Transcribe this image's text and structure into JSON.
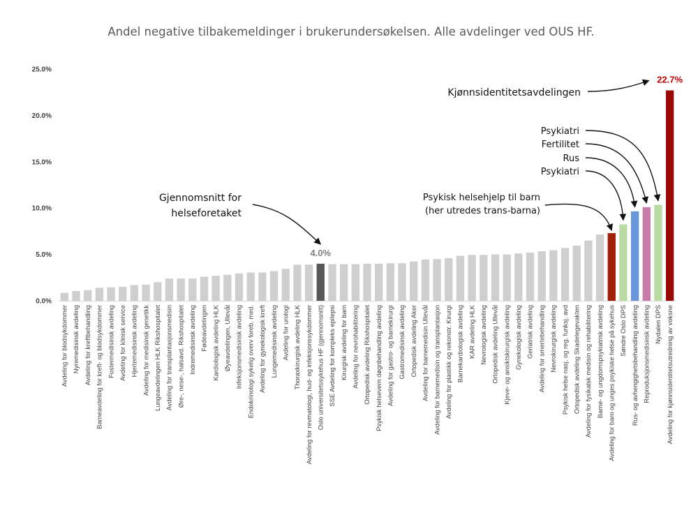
{
  "chart_data": {
    "type": "bar",
    "title": "Andel negative tilbakemeldinger i brukerundersøkelsen. Alle avdelinger ved OUS HF.",
    "xlabel": "",
    "ylabel": "",
    "ylim": [
      0,
      25
    ],
    "yticks": [
      "0.0%",
      "5.0%",
      "10.0%",
      "15.0%",
      "20.0%",
      "25.0%"
    ],
    "ytick_values": [
      0,
      5,
      10,
      15,
      20,
      25
    ],
    "grid": false,
    "categories": [
      "Avdeling for blodsykdommer",
      "Nyremedisinsk avdeling",
      "Avdeling for kreftbehandling",
      "Barneavdeling for kreft- og blodsykdommer",
      "Fostermedisinsk avdeling",
      "Avdeling for klinisk service",
      "Hjertemedisinsk avdeling",
      "Avdeling for medisinsk genetikk",
      "Lungeavdelingen HLK Rikshospitalet",
      "Avdeling for transplantasjonsmedisin",
      "Øre-, nese-, halsavd. Rikshospitalet",
      "Indremedisinsk avdeling",
      "Fødeavdelingen",
      "Kardiologisk avdeling HLK",
      "Øyeavdelingen, Ullevål",
      "Infeksjonsmedisinsk avdeling",
      "Endokrinologi sykelig overv foreb. med.",
      "Avdeling for gynekologisk kreft",
      "Lungemedisinsk avdeling",
      "Avdeling for urologi",
      "Thoraxkirurgisk avdeling HLK",
      "Avdeling for revmatologi, hud- og infeksjonssykdommer",
      "Oslo universitetssykehus HF (gjennomsnitt)",
      "SSE Avdeling for kompleks epilepsi",
      "Kirurgisk avdeling for barn",
      "Avdeling for nevrohabilitering",
      "Ortopedisk avdeling Rikshospitalet",
      "Psykisk helsevern døgnbehandling avdeling",
      "Avdeling for gastro- og barnekirurgi",
      "Gastromedisinsk avdeling",
      "Ortopedisk avdeling Aker",
      "Avdeling for barnemedisin Ullevål",
      "Avdeling for barnemedisin og transplantasjon",
      "Avdeling for plastikk og rekonstr. Kirurgi",
      "Barnekardiologisk avdeling",
      "KAR avdeling HLK",
      "Nevrologisk avdeling",
      "Ortopedisk avdeling Ullevål",
      "Kjeve- og ansiktskirurgisk avdeling",
      "Gynekologisk avdeling",
      "Geriatrisk avdeling",
      "Avdeling for smertebehandling",
      "Nevrokirurgisk avdeling",
      "Psykisk helse nasj. og reg. funksj. avd",
      "Ortopedisk avdeling Skadelegevakten",
      "Avdeling for fysikalsk medisin og rehabilitering",
      "Barne- og ungdomspsykiatrisk avdeling",
      "Avdeling for barn og unges psykiske helse på sykehus",
      "Søndre Oslo DPS",
      "Rus- og avhengighetsbehandling avdeling",
      "Reproduksjonsmedisinsk avdeling",
      "Nydalen DPS",
      "Avdeling for kjønnsidentitetsutredning av voksne"
    ],
    "values": [
      0.85,
      1.05,
      1.15,
      1.4,
      1.45,
      1.5,
      1.7,
      1.75,
      2.0,
      2.4,
      2.4,
      2.4,
      2.6,
      2.7,
      2.8,
      2.95,
      3.05,
      3.05,
      3.2,
      3.45,
      3.9,
      3.9,
      4.0,
      3.95,
      3.95,
      3.95,
      4.0,
      4.0,
      4.05,
      4.05,
      4.25,
      4.45,
      4.5,
      4.6,
      4.85,
      4.95,
      4.95,
      5.0,
      5.0,
      5.1,
      5.2,
      5.35,
      5.45,
      5.7,
      5.95,
      6.5,
      7.15,
      7.3,
      8.25,
      9.65,
      10.1,
      10.35,
      22.7
    ],
    "colors": [
      "#cfcfcf",
      "#cfcfcf",
      "#cfcfcf",
      "#cfcfcf",
      "#cfcfcf",
      "#cfcfcf",
      "#cfcfcf",
      "#cfcfcf",
      "#cfcfcf",
      "#cfcfcf",
      "#cfcfcf",
      "#cfcfcf",
      "#cfcfcf",
      "#cfcfcf",
      "#cfcfcf",
      "#cfcfcf",
      "#cfcfcf",
      "#cfcfcf",
      "#cfcfcf",
      "#cfcfcf",
      "#cfcfcf",
      "#cfcfcf",
      "#585858",
      "#cfcfcf",
      "#cfcfcf",
      "#cfcfcf",
      "#cfcfcf",
      "#cfcfcf",
      "#cfcfcf",
      "#cfcfcf",
      "#cfcfcf",
      "#cfcfcf",
      "#cfcfcf",
      "#cfcfcf",
      "#cfcfcf",
      "#cfcfcf",
      "#cfcfcf",
      "#cfcfcf",
      "#cfcfcf",
      "#cfcfcf",
      "#cfcfcf",
      "#cfcfcf",
      "#cfcfcf",
      "#cfcfcf",
      "#cfcfcf",
      "#cfcfcf",
      "#cfcfcf",
      "#a32008",
      "#b7dba3",
      "#6a97dc",
      "#c87aaa",
      "#b7dba3",
      "#9b0606"
    ],
    "data_labels": [
      {
        "index": 22,
        "text": "4.0%",
        "color": "#7f7f7f"
      },
      {
        "index": 52,
        "text": "22.7%",
        "color": "#c00000"
      }
    ],
    "annotations": [
      {
        "id": "avg",
        "lines": [
          "Gjennomsnitt for",
          "helseforetaket"
        ],
        "target_index": 22
      },
      {
        "id": "kjonn",
        "lines": [
          "Kjønnsidentitetsavdelingen"
        ],
        "target_index": 52
      },
      {
        "id": "barn",
        "lines": [
          "Psykisk helsehjelp til barn",
          "(her utredes trans-barna)"
        ],
        "target_index": 47
      },
      {
        "id": "psyk1",
        "lines": [
          "Psykiatri"
        ],
        "target_index": 51
      },
      {
        "id": "fert",
        "lines": [
          "Fertilitet"
        ],
        "target_index": 50
      },
      {
        "id": "rus",
        "lines": [
          "Rus"
        ],
        "target_index": 49
      },
      {
        "id": "psyk2",
        "lines": [
          "Psykiatri"
        ],
        "target_index": 48
      }
    ]
  }
}
